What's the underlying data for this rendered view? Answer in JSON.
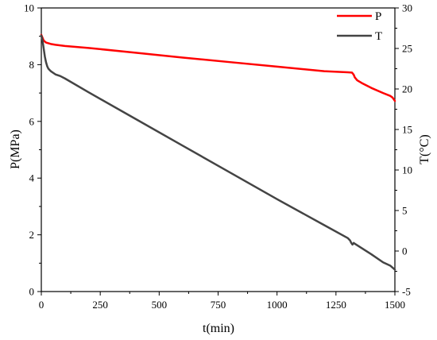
{
  "chart_data": {
    "type": "line",
    "title": "",
    "xlabel": "t(min)",
    "ylabel_left": "P(MPa)",
    "ylabel_right": "T(°C)",
    "xlim": [
      0,
      1500
    ],
    "ylim_left": [
      0,
      10
    ],
    "ylim_right": [
      -5,
      30
    ],
    "x_ticks": [
      "0",
      "250",
      "500",
      "750",
      "1000",
      "1250",
      "1500"
    ],
    "y_left_ticks": [
      "0",
      "2",
      "4",
      "6",
      "8",
      "10"
    ],
    "y_right_ticks": [
      "-5",
      "0",
      "5",
      "10",
      "15",
      "20",
      "25",
      "30"
    ],
    "grid": false,
    "legend_position": "top-right",
    "series": [
      {
        "name": "P",
        "axis": "left",
        "color": "#ff0000",
        "x": [
          0,
          5,
          10,
          20,
          40,
          60,
          100,
          200,
          400,
          600,
          800,
          1000,
          1200,
          1300,
          1318,
          1325,
          1330,
          1340,
          1360,
          1400,
          1450,
          1480,
          1490,
          1495,
          1500
        ],
        "y": [
          9.05,
          8.95,
          8.85,
          8.78,
          8.73,
          8.7,
          8.66,
          8.59,
          8.42,
          8.25,
          8.09,
          7.93,
          7.77,
          7.73,
          7.72,
          7.65,
          7.55,
          7.45,
          7.35,
          7.18,
          7.0,
          6.9,
          6.84,
          6.78,
          6.72
        ]
      },
      {
        "name": "T",
        "axis": "right",
        "color": "#444444",
        "x": [
          0,
          5,
          10,
          15,
          20,
          25,
          30,
          40,
          50,
          60,
          80,
          100,
          200,
          400,
          600,
          800,
          1000,
          1200,
          1300,
          1310,
          1315,
          1320,
          1325,
          1330,
          1400,
          1450,
          1480,
          1500
        ],
        "y": [
          26.6,
          26.0,
          25.0,
          24.0,
          23.3,
          22.8,
          22.5,
          22.2,
          22.0,
          21.8,
          21.6,
          21.3,
          19.6,
          16.3,
          13.0,
          9.7,
          6.4,
          3.2,
          1.6,
          1.3,
          1.0,
          0.8,
          1.0,
          0.9,
          -0.4,
          -1.4,
          -1.8,
          -2.3
        ]
      }
    ]
  }
}
